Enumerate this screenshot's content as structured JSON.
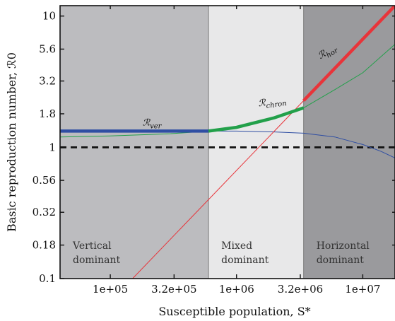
{
  "chart_data": {
    "type": "line",
    "title": "",
    "xlabel": "Susceptible population, S*",
    "ylabel": "Basic reproduction number, ℛ0",
    "x_scale": "log",
    "y_scale": "log",
    "xlim": [
      40000,
      18000000
    ],
    "ylim": [
      0.1,
      12
    ],
    "x_ticks": [
      100000,
      320000,
      1000000,
      3200000,
      10000000
    ],
    "x_tick_labels": [
      "1e+05",
      "3.2e+05",
      "1e+06",
      "3.2e+06",
      "1e+07"
    ],
    "y_ticks": [
      0.1,
      0.18,
      0.32,
      0.56,
      1,
      1.8,
      3.2,
      5.6,
      10
    ],
    "y_tick_labels": [
      "0.1",
      "0.18",
      "0.32",
      "0.56",
      "1",
      "1.8",
      "3.2",
      "5.6",
      "10"
    ],
    "regions": [
      {
        "line1": "Vertical",
        "line2": "dominant",
        "x_start": 40000,
        "x_end": 600000,
        "color": "#bcbcbf"
      },
      {
        "line1": "Mixed",
        "line2": "dominant",
        "x_start": 600000,
        "x_end": 3400000,
        "color": "#e8e8e9"
      },
      {
        "line1": "Horizontal",
        "line2": "dominant",
        "x_start": 3400000,
        "x_end": 18000000,
        "color": "#9a9a9d"
      }
    ],
    "series": [
      {
        "name": "ℛver",
        "color": "#2f4ea3",
        "x": [
          40000,
          100000,
          200000,
          400000,
          600000,
          1000000,
          2000000,
          3400000,
          6000000,
          10000000,
          14000000,
          18000000
        ],
        "y": [
          1.33,
          1.33,
          1.33,
          1.33,
          1.33,
          1.33,
          1.31,
          1.28,
          1.2,
          1.05,
          0.93,
          0.83
        ]
      },
      {
        "name": "ℛhor",
        "color": "#e8343a",
        "x": [
          150000,
          18000000
        ],
        "y": [
          0.1,
          12.0
        ]
      },
      {
        "name": "ℛchron",
        "color": "#22a04a",
        "x": [
          40000,
          100000,
          300000,
          600000,
          1000000,
          2000000,
          3400000,
          6000000,
          10000000,
          18000000
        ],
        "y": [
          1.2,
          1.22,
          1.27,
          1.33,
          1.42,
          1.68,
          2.0,
          2.75,
          3.7,
          6.1
        ]
      }
    ],
    "reference_line": {
      "y": 1,
      "style": "dashed"
    },
    "annotations": [
      {
        "base": "ℛ",
        "sub": "ver",
        "x": 180000,
        "y": 1.47
      },
      {
        "base": "ℛ",
        "sub": "chron",
        "x": 1500000,
        "y": 2.05
      },
      {
        "base": "ℛ",
        "sub": "hor",
        "x": 4600000,
        "y": 4.7
      }
    ],
    "grid": false,
    "legend": "none"
  }
}
